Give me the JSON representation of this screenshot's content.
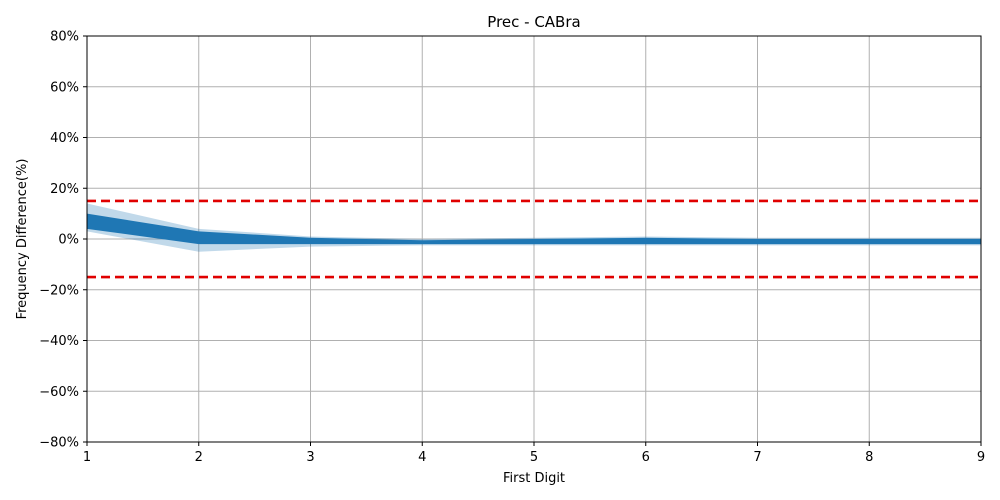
{
  "chart_data": {
    "type": "line",
    "title": "Prec - CABra",
    "xlabel": "First Digit",
    "ylabel": "Frequency Difference(%)",
    "x": [
      1,
      2,
      3,
      4,
      5,
      6,
      7,
      8,
      9
    ],
    "xlim": [
      1,
      9
    ],
    "ylim": [
      -80,
      80
    ],
    "yticks": [
      -80,
      -60,
      -40,
      -20,
      0,
      20,
      40,
      60,
      80
    ],
    "ytick_labels": [
      "−80%",
      "−60%",
      "−40%",
      "−20%",
      "0%",
      "20%",
      "40%",
      "60%",
      "80%"
    ],
    "xticks": [
      1,
      2,
      3,
      4,
      5,
      6,
      7,
      8,
      9
    ],
    "xtick_labels": [
      "1",
      "2",
      "3",
      "4",
      "5",
      "6",
      "7",
      "8",
      "9"
    ],
    "grid": true,
    "band": {
      "color": "#1f77b4",
      "core_upper": [
        10,
        3,
        0.5,
        -0.5,
        0,
        0.5,
        0,
        0,
        0
      ],
      "core_lower": [
        4,
        -2,
        -2,
        -2,
        -2,
        -2,
        -2,
        -2,
        -2
      ],
      "outer_upper": [
        14,
        4,
        1,
        0,
        0.5,
        1,
        0.5,
        0.5,
        0.5
      ],
      "outer_lower": [
        3,
        -5,
        -3,
        -2.5,
        -2.5,
        -2.5,
        -2.5,
        -2.5,
        -2.5
      ]
    },
    "thresholds": [
      {
        "value": 15,
        "color": "#e00000"
      },
      {
        "value": -15,
        "color": "#e00000"
      }
    ]
  }
}
